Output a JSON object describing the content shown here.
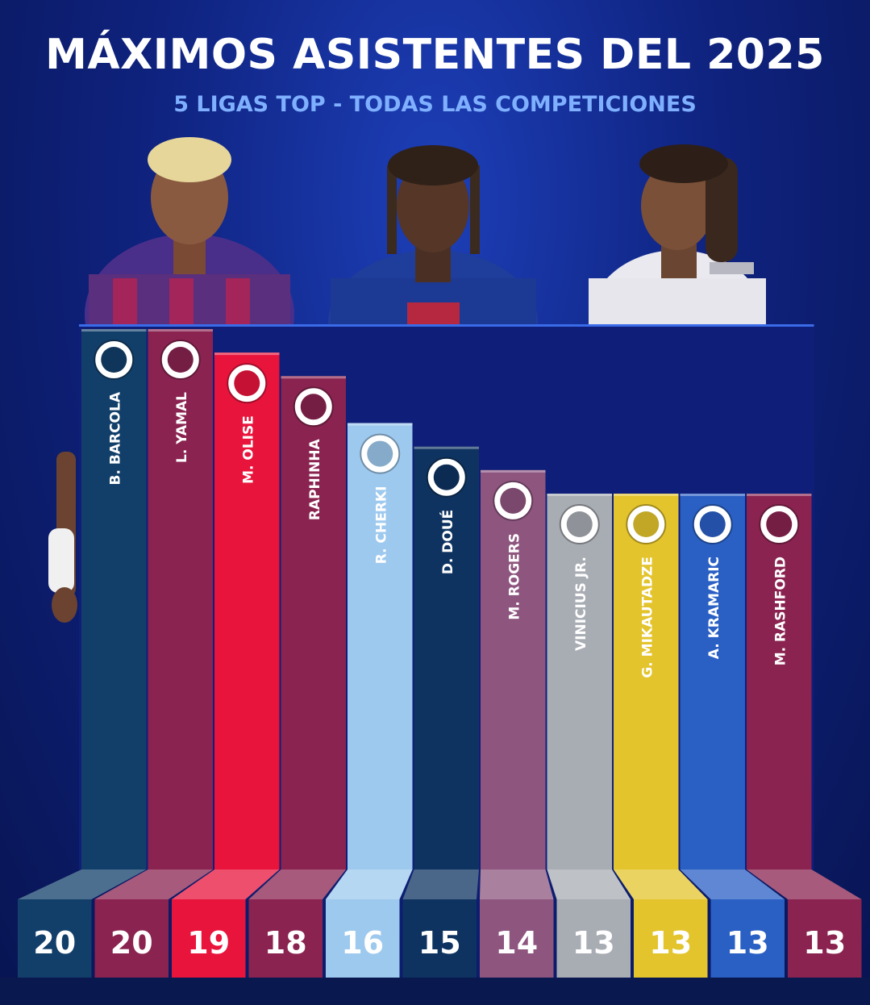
{
  "title": "MÁXIMOS ASISTENTES DEL 2025",
  "subtitle": "5 LIGAS TOP - TODAS LAS COMPETICIONES",
  "chart_data": {
    "type": "bar",
    "title": "MÁXIMOS ASISTENTES DEL 2025",
    "subtitle": "5 LIGAS TOP - TODAS LAS COMPETICIONES",
    "categories": [
      "B. BARCOLA",
      "L. YAMAL",
      "M. OLISE",
      "RAPHINHA",
      "R. CHERKI",
      "D. DOUÉ",
      "M. ROGERS",
      "VINICIUS JR.",
      "G. MIKAUTADZE",
      "A. KRAMARIC",
      "M. RASHFORD"
    ],
    "values": [
      20,
      20,
      19,
      18,
      16,
      15,
      14,
      13,
      13,
      13,
      13
    ],
    "value_labels": [
      "20",
      "20",
      "19",
      "18",
      "16",
      "15",
      "14",
      "13",
      "13",
      "13",
      "13"
    ],
    "club_logos": [
      "psg-logo",
      "barcelona-logo",
      "bayern-logo",
      "barcelona-logo",
      "man-city-logo",
      "psg-logo",
      "aston-villa-logo",
      "real-madrid-logo",
      "villarreal-logo",
      "hoffenheim-logo",
      "barcelona-logo"
    ],
    "bar_colors": [
      "#123f6a",
      "#8a2350",
      "#e8143c",
      "#8a2350",
      "#9ec9ee",
      "#0e3360",
      "#8e557f",
      "#a8acb3",
      "#e3c42c",
      "#2a5fc4",
      "#8a2350"
    ],
    "ylim": [
      0,
      20
    ],
    "xlabel": "",
    "ylabel": "",
    "grid": false,
    "legend": "none"
  }
}
